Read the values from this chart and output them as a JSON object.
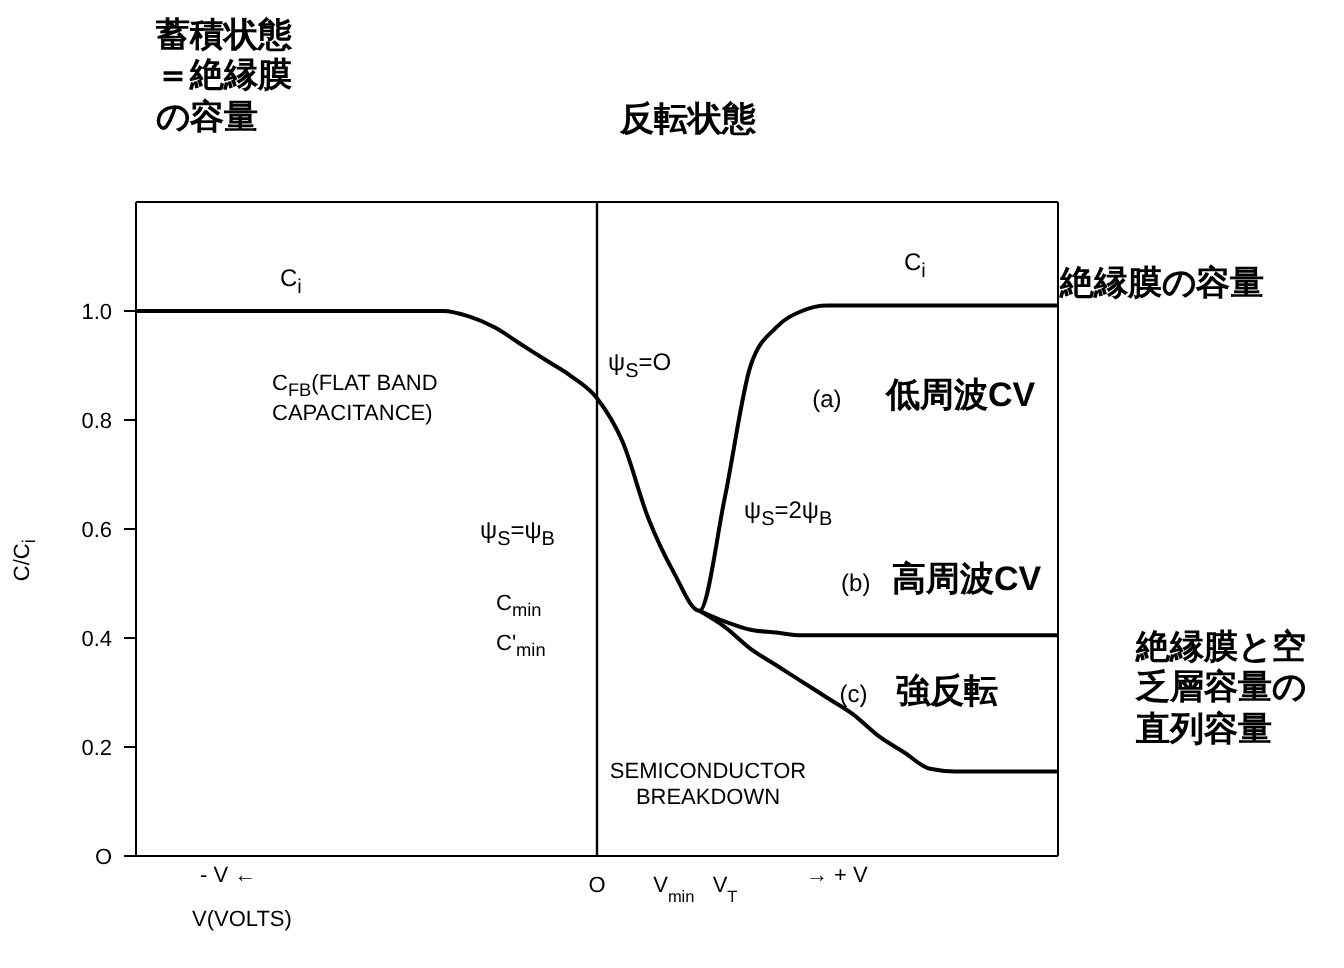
{
  "chart_data": {
    "type": "line",
    "xlabel": "V(VOLTS)",
    "ylabel": "C/C$_{i}$",
    "categories": [
      null,
      null,
      null,
      null,
      null,
      null,
      null,
      null,
      null,
      null,
      null,
      null,
      null,
      null,
      null,
      null,
      null,
      null,
      "O",
      null,
      null,
      "V$_{min}$",
      null,
      "V$_{T}$",
      null,
      null,
      null,
      null,
      null,
      null,
      null,
      null,
      null,
      null,
      null,
      null,
      null
    ],
    "series": [
      {
        "name": "(a)",
        "color": "#000000",
        "values": [
          1.0,
          1.0,
          1.0,
          1.0,
          1.0,
          1.0,
          1.0,
          1.0,
          1.0,
          1.0,
          1.0,
          1.0,
          1.0,
          0.99,
          0.97,
          0.94,
          0.91,
          0.88,
          0.84,
          0.76,
          0.62,
          0.52,
          0.45,
          0.66,
          0.9,
          0.97,
          1.0,
          1.01,
          1.01,
          1.01,
          1.01,
          1.01,
          1.01,
          1.01,
          1.01,
          1.01,
          1.01
        ]
      },
      {
        "name": "(b)",
        "color": "#000000",
        "values": [
          null,
          null,
          null,
          null,
          null,
          null,
          null,
          null,
          null,
          null,
          null,
          null,
          null,
          null,
          null,
          null,
          null,
          null,
          null,
          null,
          null,
          null,
          0.45,
          0.43,
          0.415,
          0.41,
          0.405,
          0.405,
          0.405,
          0.405,
          0.405,
          0.405,
          0.405,
          0.405,
          0.405,
          0.405,
          0.405
        ]
      },
      {
        "name": "(c)",
        "color": "#000000",
        "values": [
          null,
          null,
          null,
          null,
          null,
          null,
          null,
          null,
          null,
          null,
          null,
          null,
          null,
          null,
          null,
          null,
          null,
          null,
          null,
          null,
          null,
          null,
          0.45,
          0.42,
          0.38,
          0.35,
          0.32,
          0.29,
          0.26,
          0.22,
          0.19,
          0.16,
          0.155,
          0.155,
          0.155,
          0.155,
          0.155
        ]
      }
    ],
    "ylim": [
      0,
      1.2
    ],
    "yticks": [
      {
        "value": 0,
        "label": "O"
      },
      0.2,
      0.4,
      0.6,
      0.8,
      {
        "value": 1,
        "label": "1.0"
      }
    ],
    "grid": false,
    "legend": false,
    "marker": "none",
    "line_style": "solid",
    "ref_lines": [
      {
        "axis": "x",
        "value": "O",
        "color": "#000000"
      }
    ],
    "annotations": [
      "C$_{i}$",
      "C$_{i}$",
      "C$_{FB}$(FLAT BAND CAPACITANCE)",
      "ψ$_{S}$=O",
      "ψ$_{S}$=ψ$_{B}$",
      "ψ$_{S}$=2ψ$_{B}$",
      "C$_{min}$",
      "C'$_{min}$",
      "SEMICONDUCTOR BREAKDOWN",
      "- V ←",
      "→ + V",
      "蓄積状態＝絶縁膜の容量",
      "反転状態",
      "絶縁膜の容量",
      "低周波CV",
      "高周波CV",
      "強反転",
      "絶縁膜と空乏層容量の直列容量"
    ]
  }
}
